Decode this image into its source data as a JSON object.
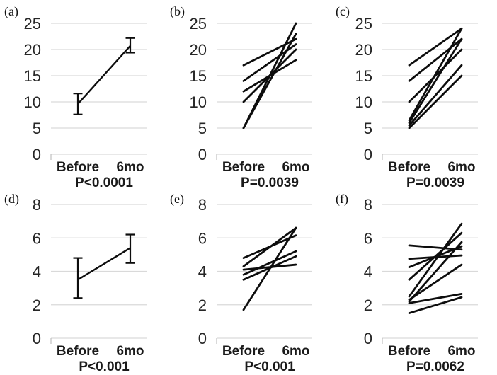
{
  "style": {
    "ink": "#0d0d0d",
    "gridline": "#d9d9d9",
    "axis_stub": "#bfbfbf"
  },
  "chart_data": [
    {
      "type": "line",
      "subtype": "mean-errorbar",
      "panel": "(a)",
      "categories": [
        "Before",
        "6mo"
      ],
      "ylim": [
        0,
        25
      ],
      "yticks": [
        0,
        5,
        10,
        15,
        20,
        25
      ],
      "grid": true,
      "p_value_label": "P<0.0001",
      "mean": [
        9.6,
        20.7
      ],
      "err_low": [
        7.6,
        19.4
      ],
      "err_high": [
        11.6,
        22.2
      ]
    },
    {
      "type": "line",
      "subtype": "paired-individual",
      "panel": "(b)",
      "categories": [
        "Before",
        "6mo"
      ],
      "ylim": [
        0,
        25
      ],
      "yticks": [
        0,
        5,
        10,
        15,
        20,
        25
      ],
      "grid": true,
      "p_value_label": "P=0.0039",
      "pairs": [
        [
          17,
          22
        ],
        [
          14,
          21
        ],
        [
          12,
          18
        ],
        [
          10,
          20
        ],
        [
          5,
          25
        ],
        [
          5,
          23
        ]
      ]
    },
    {
      "type": "line",
      "subtype": "paired-individual",
      "panel": "(c)",
      "categories": [
        "Before",
        "6mo"
      ],
      "ylim": [
        0,
        25
      ],
      "yticks": [
        0,
        5,
        10,
        15,
        20,
        25
      ],
      "grid": true,
      "p_value_label": "P=0.0039",
      "pairs": [
        [
          17,
          24
        ],
        [
          14,
          22
        ],
        [
          10,
          20
        ],
        [
          6.5,
          24
        ],
        [
          6,
          22
        ],
        [
          5.5,
          17
        ],
        [
          5,
          15
        ]
      ]
    },
    {
      "type": "line",
      "subtype": "mean-errorbar",
      "panel": "(d)",
      "categories": [
        "Before",
        "6mo"
      ],
      "ylim": [
        0,
        8
      ],
      "yticks": [
        0,
        2,
        4,
        6,
        8
      ],
      "grid": true,
      "p_value_label": "P<0.001",
      "mean": [
        3.5,
        5.4
      ],
      "err_low": [
        2.4,
        4.5
      ],
      "err_high": [
        4.8,
        6.2
      ]
    },
    {
      "type": "line",
      "subtype": "paired-individual",
      "panel": "(e)",
      "categories": [
        "Before",
        "6mo"
      ],
      "ylim": [
        0,
        8
      ],
      "yticks": [
        0,
        2,
        4,
        6,
        8
      ],
      "grid": true,
      "p_value_label": "P<0.001",
      "pairs": [
        [
          4.8,
          6.15
        ],
        [
          4.3,
          6.6
        ],
        [
          4.1,
          4.4
        ],
        [
          3.8,
          5.2
        ],
        [
          3.5,
          4.9
        ],
        [
          1.7,
          6.6
        ]
      ]
    },
    {
      "type": "line",
      "subtype": "paired-individual",
      "panel": "(f)",
      "categories": [
        "Before",
        "6mo"
      ],
      "ylim": [
        0,
        8
      ],
      "yticks": [
        0,
        2,
        4,
        6,
        8
      ],
      "grid": true,
      "p_value_label": "P=0.0062",
      "pairs": [
        [
          5.55,
          5.3
        ],
        [
          4.75,
          4.95
        ],
        [
          4.25,
          5.5
        ],
        [
          3.5,
          6.3
        ],
        [
          2.5,
          6.85
        ],
        [
          2.2,
          5.75
        ],
        [
          2.3,
          4.4
        ],
        [
          2.1,
          2.65
        ],
        [
          1.5,
          2.45
        ]
      ]
    }
  ]
}
